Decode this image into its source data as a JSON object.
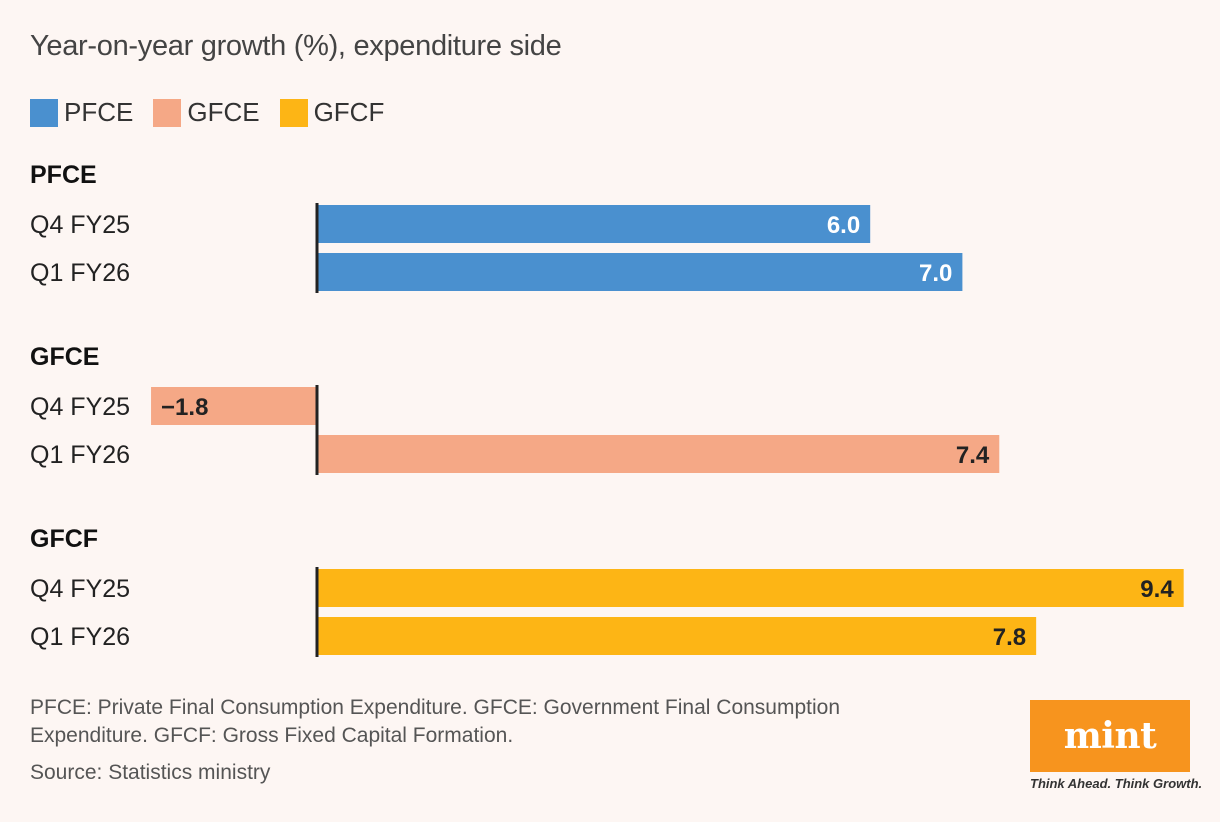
{
  "title": "Year-on-year growth (%), expenditure side",
  "legend": [
    {
      "label": "PFCE",
      "color": "#4a90cf"
    },
    {
      "label": "GFCE",
      "color": "#f5a886"
    },
    {
      "label": "GFCF",
      "color": "#fdb515"
    }
  ],
  "chart_data": {
    "type": "bar",
    "orientation": "horizontal",
    "title": "Year-on-year growth (%), expenditure side",
    "xlabel": "",
    "ylabel": "",
    "xlim": [
      -1.8,
      9.4
    ],
    "groups": [
      {
        "name": "PFCE",
        "color": "#4a90cf",
        "label_color": "#ffffff",
        "bars": [
          {
            "label": "Q4 FY25",
            "value": 6.0,
            "display": "6.0"
          },
          {
            "label": "Q1 FY26",
            "value": 7.0,
            "display": "7.0"
          }
        ]
      },
      {
        "name": "GFCE",
        "color": "#f5a886",
        "label_color": "#222222",
        "bars": [
          {
            "label": "Q4 FY25",
            "value": -1.8,
            "display": "−1.8"
          },
          {
            "label": "Q1 FY26",
            "value": 7.4,
            "display": "7.4"
          }
        ]
      },
      {
        "name": "GFCF",
        "color": "#fdb515",
        "label_color": "#222222",
        "bars": [
          {
            "label": "Q4 FY25",
            "value": 9.4,
            "display": "9.4"
          },
          {
            "label": "Q1 FY26",
            "value": 7.8,
            "display": "7.8"
          }
        ]
      }
    ]
  },
  "footnote": "PFCE: Private Final Consumption Expenditure. GFCE: Government Final Consumption Expenditure. GFCF: Gross Fixed Capital Formation.",
  "source": "Source: Statistics ministry",
  "logo": {
    "text": "mint",
    "tagline": "Think Ahead. Think Growth."
  }
}
